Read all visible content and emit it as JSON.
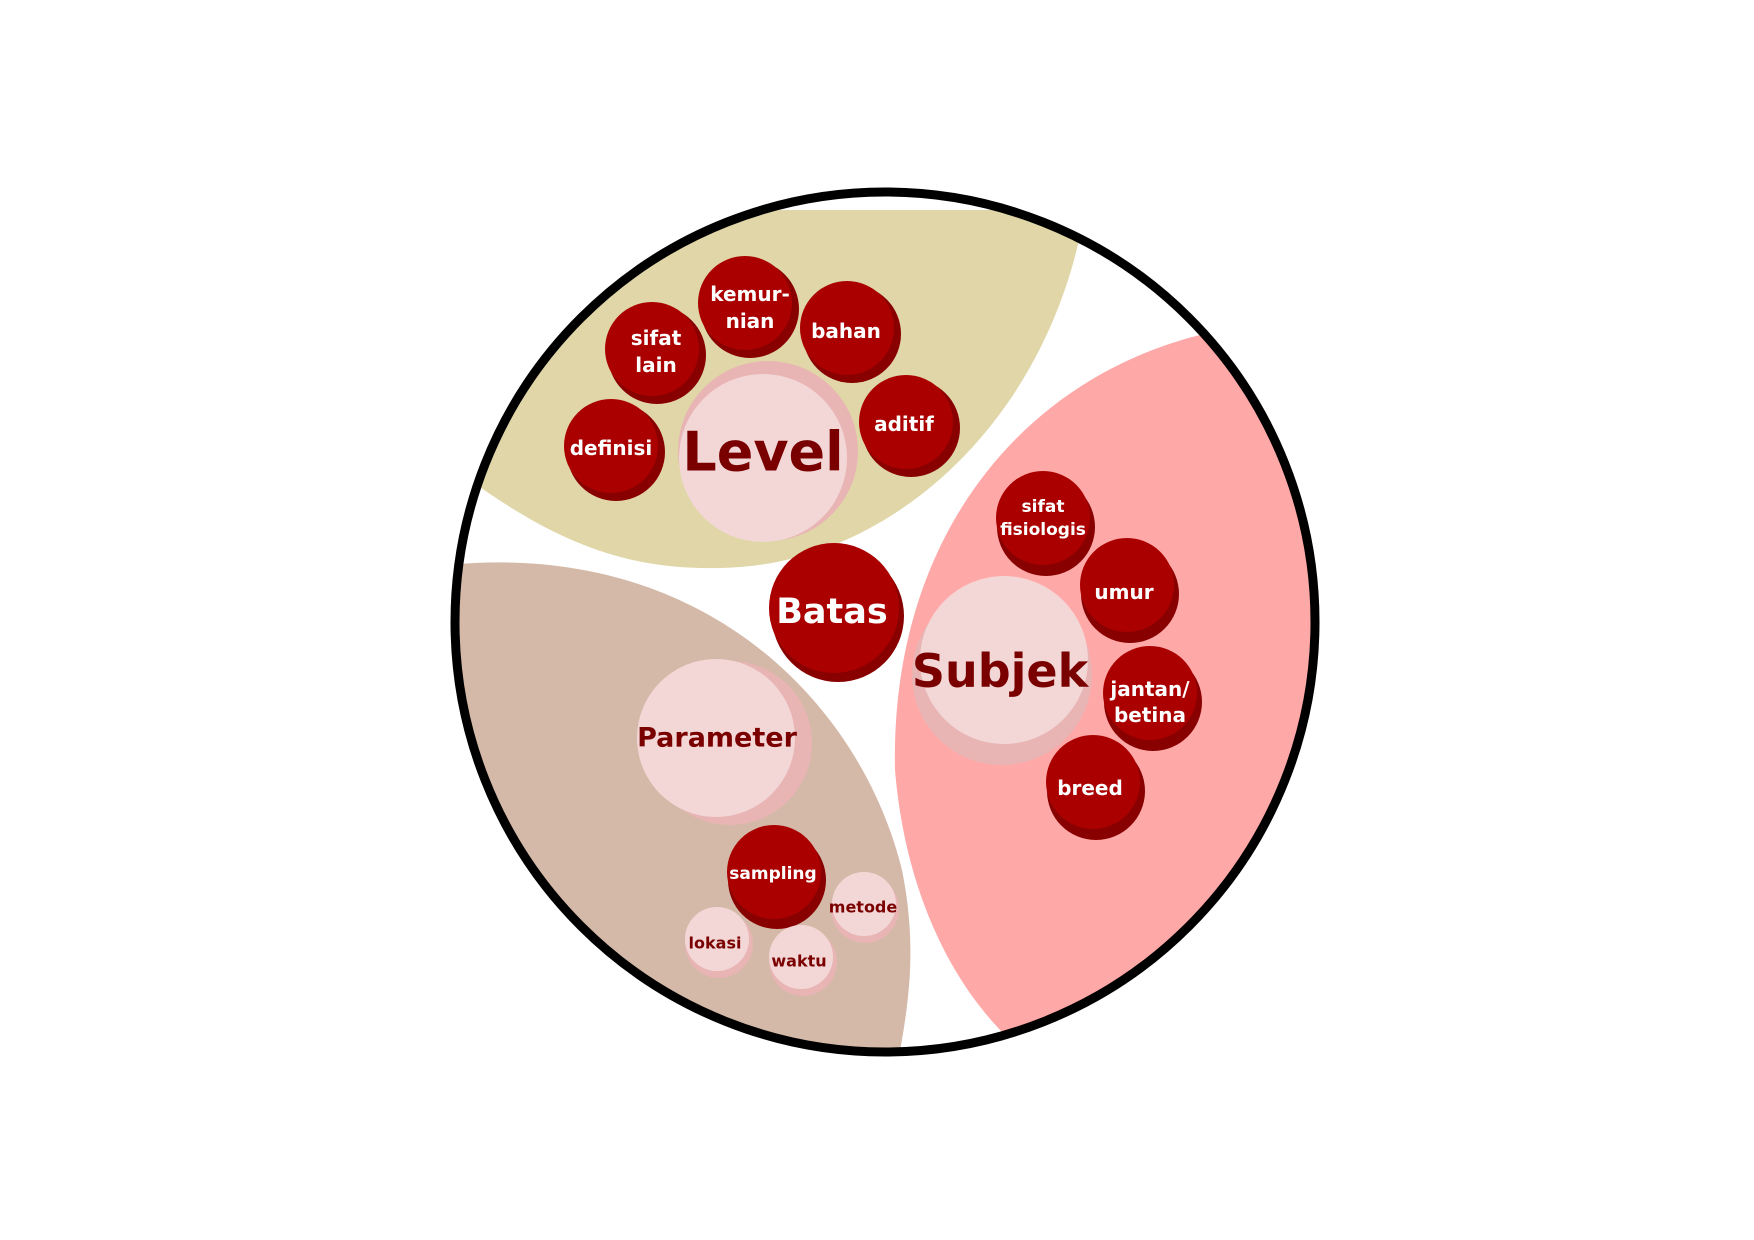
{
  "center": {
    "label": "Batas"
  },
  "level": {
    "label": "Level",
    "items": [
      {
        "lines": [
          "definisi"
        ]
      },
      {
        "lines": [
          "sifat",
          "lain"
        ]
      },
      {
        "lines": [
          "kemur-",
          "nian"
        ]
      },
      {
        "lines": [
          "bahan"
        ]
      },
      {
        "lines": [
          "aditif"
        ]
      }
    ]
  },
  "subjek": {
    "label": "Subjek",
    "items": [
      {
        "lines": [
          "sifat",
          "fisiologis"
        ]
      },
      {
        "lines": [
          "umur"
        ]
      },
      {
        "lines": [
          "jantan/",
          "betina"
        ]
      },
      {
        "lines": [
          "breed"
        ]
      }
    ]
  },
  "parameter": {
    "label": "Parameter",
    "items": [
      {
        "lines": [
          "sampling"
        ]
      },
      {
        "lines": [
          "metode"
        ]
      },
      {
        "lines": [
          "lokasi"
        ]
      },
      {
        "lines": [
          "waktu"
        ]
      }
    ]
  },
  "colors": {
    "outline": "#000000",
    "level_region": "#e0d6a8",
    "parameter_region": "#d5b9a8",
    "subjek_region": "#ffa8a8",
    "node_red": "#aa0000",
    "node_red_shadow": "#880000",
    "node_pink": "#f3d7d7",
    "node_pink_shadow": "#e8b4b4",
    "text_white": "#ffffff",
    "text_dark_red": "#7a0000"
  }
}
